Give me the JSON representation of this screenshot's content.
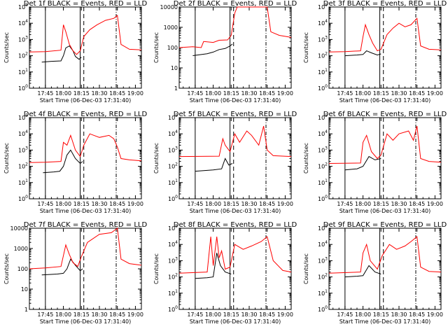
{
  "figure": {
    "background": "#ffffff",
    "events_color": "#000000",
    "lld_color": "#ff0000"
  },
  "chart_data": [
    {
      "type": "line",
      "title": "Det 1f BLACK = Events, RED = LLD",
      "xlabel": "Start Time (06-Dec-03 17:31:40)",
      "ylabel": "Counts/sec",
      "yscale": "log",
      "xlim": [
        "17:31:40",
        "19:05"
      ],
      "ylim": [
        1,
        100000
      ],
      "xticks": [
        "17:45",
        "18:00",
        "18:15",
        "18:30",
        "18:45",
        "19:00"
      ],
      "yticks": [
        "10^0",
        "10^1",
        "10^2",
        "10^3",
        "10^4",
        "10^5"
      ],
      "series": [
        {
          "name": "Events",
          "color": "#000000",
          "x": [
            "17:42",
            "17:50",
            "17:58",
            "18:00",
            "18:02",
            "18:05",
            "18:08",
            "18:10",
            "18:13",
            "18:15"
          ],
          "y": [
            40,
            45,
            48,
            100,
            300,
            400,
            200,
            90,
            60,
            80
          ]
        },
        {
          "name": "LLD",
          "color": "#ff0000",
          "x": [
            "17:31:40",
            "17:45",
            "17:58",
            "18:00",
            "18:02",
            "18:05",
            "18:08",
            "18:11",
            "18:14",
            "18:17",
            "18:22",
            "18:28",
            "18:35",
            "18:42",
            "18:45",
            "18:48",
            "18:55",
            "19:05"
          ],
          "y": [
            170,
            180,
            220,
            8000,
            3000,
            500,
            200,
            120,
            200,
            1500,
            4000,
            8000,
            15000,
            20000,
            30000,
            500,
            250,
            230
          ]
        }
      ]
    },
    {
      "type": "line",
      "title": "Det 2f BLACK = Events, RED = LLD",
      "xlabel": "Start Time (06-Dec-03 17:31:40)",
      "ylabel": "Counts/sec",
      "yscale": "log",
      "xlim": [
        "17:31:40",
        "19:05"
      ],
      "ylim": [
        1,
        10000
      ],
      "xticks": [
        "17:45",
        "18:00",
        "18:15",
        "18:30",
        "18:45",
        "19:00"
      ],
      "yticks": [
        "1",
        "10",
        "100",
        "1000",
        "10000"
      ],
      "series": [
        {
          "name": "Events",
          "color": "#000000",
          "x": [
            "17:43",
            "17:55",
            "18:00",
            "18:05",
            "18:10",
            "18:14",
            "18:16"
          ],
          "y": [
            40,
            50,
            60,
            80,
            90,
            120,
            150
          ]
        },
        {
          "name": "LLD",
          "color": "#ff0000",
          "x": [
            "17:31:40",
            "17:43",
            "17:50",
            "17:52",
            "18:00",
            "18:05",
            "18:12",
            "18:15",
            "18:18",
            "18:20",
            "18:45",
            "18:48",
            "18:55",
            "19:05"
          ],
          "y": [
            100,
            110,
            100,
            200,
            180,
            230,
            240,
            400,
            5000,
            10000,
            10000,
            600,
            400,
            320
          ]
        }
      ]
    },
    {
      "type": "line",
      "title": "Det 3f BLACK = Events, RED = LLD",
      "xlabel": "Start Time (06-Dec-03 17:31:40)",
      "ylabel": "Counts/sec",
      "yscale": "log",
      "xlim": [
        "17:31:40",
        "19:05"
      ],
      "ylim": [
        1,
        100000
      ],
      "xticks": [
        "17:45",
        "18:00",
        "18:15",
        "18:30",
        "18:45",
        "19:00"
      ],
      "yticks": [
        "10^0",
        "10^1",
        "10^2",
        "10^3",
        "10^4",
        "10^5"
      ],
      "series": [
        {
          "name": "Events",
          "color": "#000000",
          "x": [
            "17:45",
            "17:55",
            "18:00",
            "18:03",
            "18:07",
            "18:12",
            "18:15"
          ],
          "y": [
            100,
            110,
            120,
            200,
            150,
            110,
            130
          ]
        },
        {
          "name": "LLD",
          "color": "#ff0000",
          "x": [
            "17:31:40",
            "17:45",
            "17:58",
            "18:00",
            "18:02",
            "18:05",
            "18:08",
            "18:12",
            "18:15",
            "18:20",
            "18:25",
            "18:30",
            "18:35",
            "18:40",
            "18:45",
            "18:48",
            "18:55",
            "19:05"
          ],
          "y": [
            170,
            180,
            200,
            1500,
            8000,
            2000,
            600,
            200,
            250,
            2000,
            5000,
            10000,
            6000,
            8000,
            20000,
            400,
            250,
            230
          ]
        }
      ]
    },
    {
      "type": "line",
      "title": "Det 4f BLACK = Events, RED = LLD",
      "xlabel": "Start Time (06-Dec-03 17:31:40)",
      "ylabel": "Counts/sec",
      "yscale": "log",
      "xlim": [
        "17:31:40",
        "19:05"
      ],
      "ylim": [
        1,
        100000
      ],
      "xticks": [
        "17:45",
        "18:00",
        "18:15",
        "18:30",
        "18:45",
        "19:00"
      ],
      "yticks": [
        "10^0",
        "10^1",
        "10^2",
        "10^3",
        "10^4",
        "10^5"
      ],
      "series": [
        {
          "name": "Events",
          "color": "#000000",
          "x": [
            "17:43",
            "17:52",
            "17:57",
            "18:00",
            "18:03",
            "18:06",
            "18:10",
            "18:14",
            "18:16"
          ],
          "y": [
            40,
            45,
            50,
            100,
            500,
            1000,
            300,
            150,
            200
          ]
        },
        {
          "name": "LLD",
          "color": "#ff0000",
          "x": [
            "17:31:40",
            "17:45",
            "17:58",
            "18:00",
            "18:03",
            "18:06",
            "18:10",
            "18:14",
            "18:17",
            "18:22",
            "18:30",
            "18:38",
            "18:42",
            "18:45",
            "18:48",
            "18:55",
            "19:05"
          ],
          "y": [
            170,
            180,
            200,
            3000,
            2000,
            8000,
            1000,
            400,
            2000,
            10000,
            6000,
            8000,
            5000,
            1500,
            300,
            250,
            220
          ]
        }
      ]
    },
    {
      "type": "line",
      "title": "Det 5f BLACK = Events, RED = LLD",
      "xlabel": "Start Time (06-Dec-03 17:31:40)",
      "ylabel": "Counts/sec",
      "yscale": "log",
      "xlim": [
        "17:31:40",
        "19:05"
      ],
      "ylim": [
        1,
        100000
      ],
      "xticks": [
        "17:45",
        "18:00",
        "18:15",
        "18:30",
        "18:45",
        "19:00"
      ],
      "yticks": [
        "10^0",
        "10^1",
        "10^2",
        "10^3",
        "10^4",
        "10^5"
      ],
      "series": [
        {
          "name": "Events",
          "color": "#000000",
          "x": [
            "17:45",
            "18:00",
            "18:07",
            "18:10",
            "18:13",
            "18:16"
          ],
          "y": [
            50,
            60,
            70,
            300,
            120,
            150
          ]
        },
        {
          "name": "LLD",
          "color": "#ff0000",
          "x": [
            "17:31:40",
            "18:05",
            "18:08",
            "18:10",
            "18:14",
            "18:18",
            "18:22",
            "18:28",
            "18:32",
            "18:38",
            "18:42",
            "18:45",
            "18:50",
            "19:05"
          ],
          "y": [
            400,
            420,
            5000,
            2000,
            800,
            10000,
            3000,
            15000,
            8000,
            2000,
            30000,
            1000,
            450,
            400
          ]
        }
      ]
    },
    {
      "type": "line",
      "title": "Det 6f BLACK = Events, RED = LLD",
      "xlabel": "Start Time (06-Dec-03 17:31:40)",
      "ylabel": "Counts/sec",
      "yscale": "log",
      "xlim": [
        "17:31:40",
        "19:05"
      ],
      "ylim": [
        1,
        100000
      ],
      "xticks": [
        "17:45",
        "18:00",
        "18:15",
        "18:30",
        "18:45",
        "19:00"
      ],
      "yticks": [
        "10^0",
        "10^1",
        "10^2",
        "10^3",
        "10^4",
        "10^5"
      ],
      "series": [
        {
          "name": "Events",
          "color": "#000000",
          "x": [
            "17:45",
            "17:55",
            "18:00",
            "18:05",
            "18:10",
            "18:15"
          ],
          "y": [
            60,
            70,
            100,
            400,
            250,
            300
          ]
        },
        {
          "name": "LLD",
          "color": "#ff0000",
          "x": [
            "17:31:40",
            "17:58",
            "18:00",
            "18:03",
            "18:07",
            "18:12",
            "18:15",
            "18:20",
            "18:25",
            "18:30",
            "18:38",
            "18:42",
            "18:45",
            "18:48",
            "18:55",
            "19:05"
          ],
          "y": [
            150,
            160,
            3000,
            8000,
            800,
            300,
            500,
            10000,
            4000,
            10000,
            15000,
            4000,
            30000,
            300,
            200,
            180
          ]
        }
      ]
    },
    {
      "type": "line",
      "title": "Det 7f BLACK = Events, RED = LLD",
      "xlabel": "Start Time (06-Dec-03 17:31:40)",
      "ylabel": "Counts/sec",
      "yscale": "log",
      "xlim": [
        "17:31:40",
        "19:05"
      ],
      "ylim": [
        1,
        10000
      ],
      "xticks": [
        "17:45",
        "18:00",
        "18:15",
        "18:30",
        "18:45",
        "19:00"
      ],
      "yticks": [
        "1",
        "10",
        "100",
        "1000",
        "10000"
      ],
      "series": [
        {
          "name": "Events",
          "color": "#000000",
          "x": [
            "17:42",
            "17:55",
            "18:00",
            "18:03",
            "18:06",
            "18:10",
            "18:14",
            "18:16"
          ],
          "y": [
            50,
            55,
            60,
            100,
            300,
            150,
            80,
            100
          ]
        },
        {
          "name": "LLD",
          "color": "#ff0000",
          "x": [
            "17:31:40",
            "17:45",
            "17:58",
            "18:02",
            "18:05",
            "18:08",
            "18:12",
            "18:15",
            "18:20",
            "18:30",
            "18:40",
            "18:45",
            "18:48",
            "18:55",
            "19:05"
          ],
          "y": [
            100,
            110,
            130,
            1500,
            500,
            200,
            130,
            400,
            2000,
            5000,
            6000,
            10000,
            300,
            180,
            150
          ]
        }
      ]
    },
    {
      "type": "line",
      "title": "Det 8f BLACK = Events, RED = LLD",
      "xlabel": "Start Time (06-Dec-03 17:31:40)",
      "ylabel": "Counts/sec",
      "yscale": "log",
      "xlim": [
        "17:31:40",
        "19:05"
      ],
      "ylim": [
        1,
        100000
      ],
      "xticks": [
        "17:45",
        "18:00",
        "18:15",
        "18:30",
        "18:45",
        "19:00"
      ],
      "yticks": [
        "10^0",
        "10^1",
        "10^2",
        "10^3",
        "10^4",
        "10^5"
      ],
      "series": [
        {
          "name": "Events",
          "color": "#000000",
          "x": [
            "17:45",
            "17:55",
            "18:00",
            "18:03",
            "18:06",
            "18:10",
            "18:15"
          ],
          "y": [
            80,
            90,
            100,
            3000,
            500,
            200,
            150
          ]
        },
        {
          "name": "LLD",
          "color": "#ff0000",
          "x": [
            "17:31:40",
            "17:55",
            "17:58",
            "18:00",
            "18:03",
            "18:05",
            "18:07",
            "18:10",
            "18:14",
            "18:18",
            "18:25",
            "18:32",
            "18:40",
            "18:45",
            "18:50",
            "18:58",
            "19:05"
          ],
          "y": [
            170,
            200,
            30000,
            500,
            30000,
            1500,
            4000,
            300,
            400,
            10000,
            5000,
            8000,
            15000,
            30000,
            1000,
            250,
            200
          ]
        }
      ]
    },
    {
      "type": "line",
      "title": "Det 9f BLACK = Events, RED = LLD",
      "xlabel": "Start Time (06-Dec-03 17:31:40)",
      "ylabel": "Counts/sec",
      "yscale": "log",
      "xlim": [
        "17:31:40",
        "19:05"
      ],
      "ylim": [
        1,
        100000
      ],
      "xticks": [
        "17:45",
        "18:00",
        "18:15",
        "18:30",
        "18:45",
        "19:00"
      ],
      "yticks": [
        "10^0",
        "10^1",
        "10^2",
        "10^3",
        "10^4",
        "10^5"
      ],
      "series": [
        {
          "name": "Events",
          "color": "#000000",
          "x": [
            "17:45",
            "17:55",
            "18:00",
            "18:05",
            "18:10",
            "18:15"
          ],
          "y": [
            100,
            110,
            120,
            500,
            200,
            150
          ]
        },
        {
          "name": "LLD",
          "color": "#ff0000",
          "x": [
            "17:31:40",
            "17:58",
            "18:00",
            "18:03",
            "18:06",
            "18:12",
            "18:16",
            "18:22",
            "18:28",
            "18:35",
            "18:40",
            "18:45",
            "18:48",
            "18:55",
            "19:05"
          ],
          "y": [
            170,
            200,
            3000,
            10000,
            1000,
            300,
            2000,
            10000,
            5000,
            8000,
            15000,
            30000,
            400,
            220,
            200
          ]
        }
      ]
    }
  ]
}
